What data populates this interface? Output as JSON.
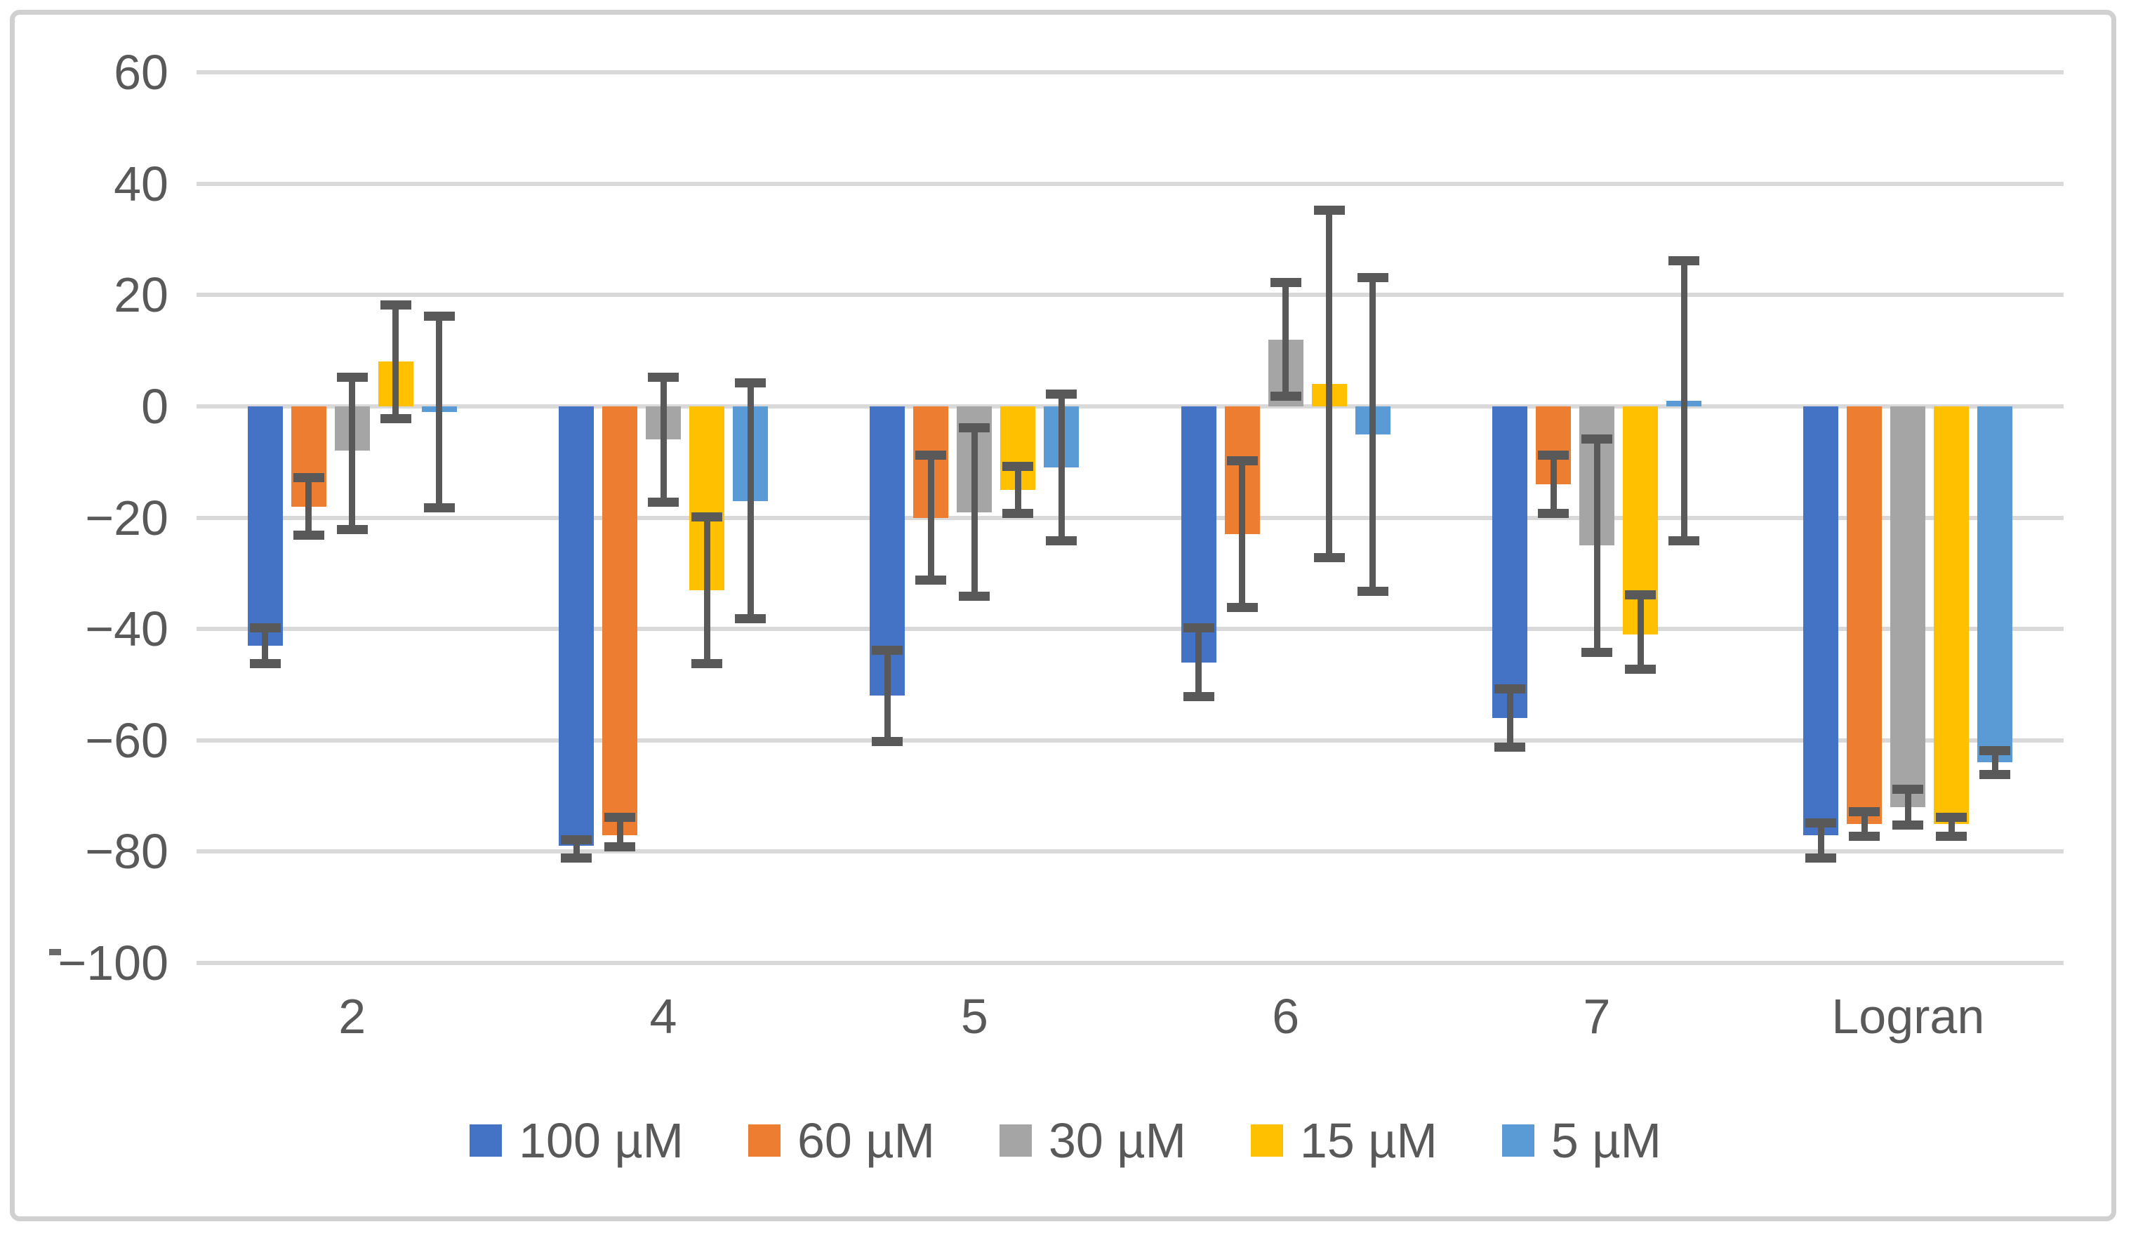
{
  "figure": {
    "kind": "embedded-excel-style-clustered-bar-chart",
    "title": "",
    "background": "#FFFFFF"
  },
  "chart_data": {
    "type": "bar",
    "title": "",
    "xlabel": "",
    "ylabel": "",
    "grid": true,
    "legend_position": "bottom",
    "categories": [
      "2",
      "4",
      "5",
      "6",
      "7",
      "Logran"
    ],
    "series": [
      {
        "name": "100 µM",
        "color": "#4472C4",
        "values": [
          -43,
          -79,
          -52,
          -46,
          -56,
          -77
        ],
        "error_high": [
          -39,
          -77,
          -43,
          -39,
          -50,
          -74
        ],
        "error_low": [
          -47,
          -82,
          -61,
          -53,
          -62,
          -82
        ]
      },
      {
        "name": "60 µM",
        "color": "#ED7D31",
        "values": [
          -18,
          -77,
          -20,
          -23,
          -14,
          -75
        ],
        "error_high": [
          -12,
          -73,
          -8,
          -9,
          -8,
          -72
        ],
        "error_low": [
          -24,
          -80,
          -32,
          -37,
          -20,
          -78
        ]
      },
      {
        "name": "30 µM",
        "color": "#A5A5A5",
        "values": [
          -8,
          -6,
          -19,
          12,
          -25,
          -72
        ],
        "error_high": [
          6,
          6,
          -3,
          23,
          -5,
          -68
        ],
        "error_low": [
          -23,
          -18,
          -35,
          1,
          -45,
          -76
        ]
      },
      {
        "name": "15 µM",
        "color": "#FFC000",
        "values": [
          8,
          -33,
          -15,
          4,
          -41,
          -75
        ],
        "error_high": [
          19,
          -19,
          -10,
          36,
          -33,
          -73
        ],
        "error_low": [
          -3,
          -47,
          -20,
          -28,
          -48,
          -78
        ]
      },
      {
        "name": "5 µM",
        "color": "#5B9BD5",
        "values": [
          -1,
          -17,
          -11,
          -5,
          1,
          -64
        ],
        "error_high": [
          17,
          5,
          3,
          24,
          27,
          -61
        ],
        "error_low": [
          -19,
          -39,
          -25,
          -34,
          -25,
          -67
        ]
      }
    ],
    "y_axis": {
      "min": -100,
      "max": 60,
      "tick_step": 20,
      "ticks": [
        60,
        40,
        20,
        0,
        -20,
        -40,
        -60,
        -80,
        -100
      ],
      "tick_labels": [
        "60",
        "40",
        "20",
        "0",
        "−20",
        "−40",
        "−60",
        "−80",
        "−100"
      ]
    }
  },
  "colors": {
    "gridline": "#D9D9D9",
    "outer_border": "#D0D0D0",
    "error_bar": "#595959",
    "axis_text": "#595959",
    "background": "#FFFFFF"
  }
}
